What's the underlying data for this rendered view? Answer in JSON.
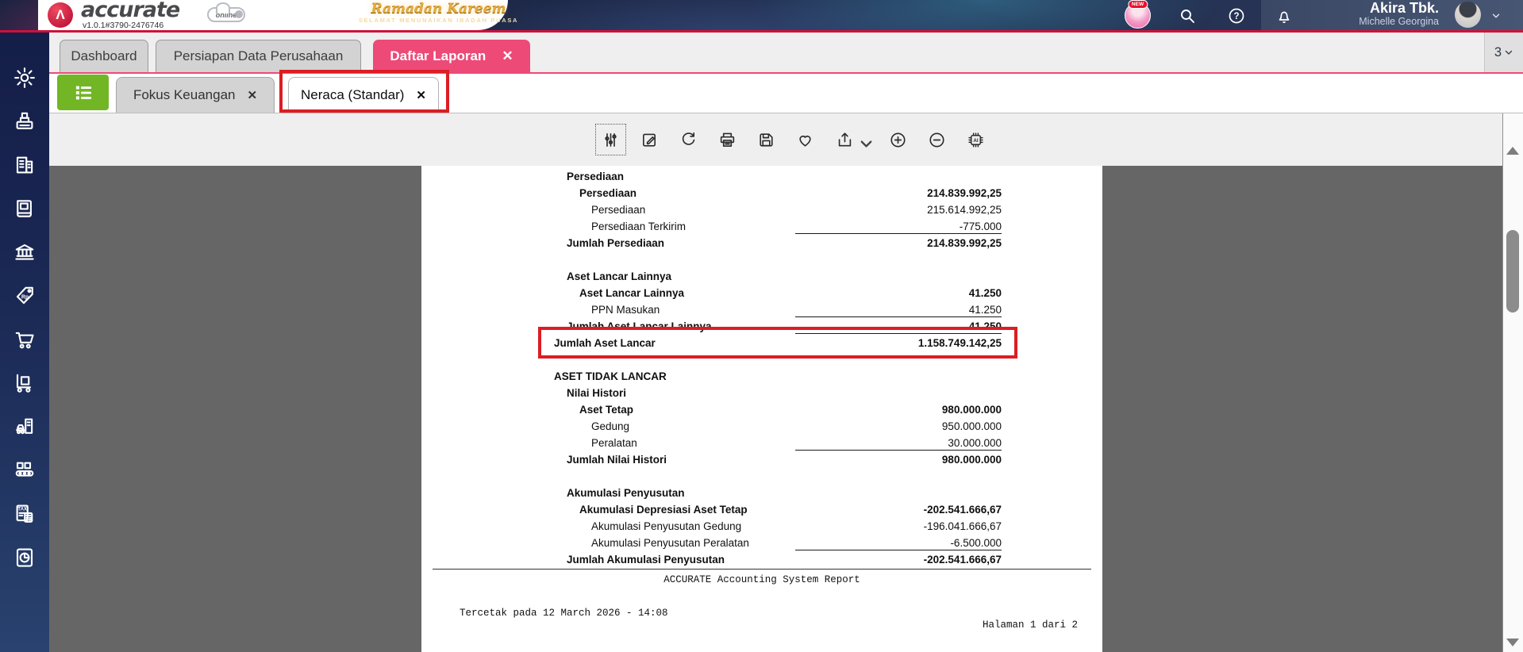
{
  "ui": {
    "close_glyph": "✕",
    "logo_glyph": "Λ"
  },
  "colors": {
    "pink": "#ed4a78",
    "green": "#72b626",
    "crimson": "#d0113b",
    "anno": "#dc1d23",
    "report_background": "#666666",
    "sidebar_navy": "#1b2955"
  },
  "header": {
    "brand": "accurate",
    "brand_sub": "online",
    "version": "v1.0.1#3790-2476746",
    "banner": {
      "title": "Ramadan Kareem",
      "subtitle": "SELAMAT MENUNAIKAN IBADAH PUASA"
    },
    "new_badge": "NEW",
    "user": {
      "company": "Akira Tbk.",
      "name": "Michelle Georgina"
    }
  },
  "main_tabs": [
    {
      "label": "Dashboard",
      "active": false,
      "closable": false
    },
    {
      "label": "Persiapan Data Perusahaan",
      "active": false,
      "closable": false
    },
    {
      "label": "Daftar Laporan",
      "active": true,
      "closable": true
    }
  ],
  "tab_overflow_count": "3",
  "report_tabs": [
    {
      "label": "Fokus Keuangan",
      "closable": true,
      "active": false
    },
    {
      "label": "Neraca (Standar)",
      "closable": true,
      "active": true,
      "annotated": true
    }
  ],
  "toolbar": {
    "icons": [
      {
        "name": "filter-settings",
        "selected": true
      },
      {
        "name": "edit"
      },
      {
        "name": "refresh"
      },
      {
        "name": "print"
      },
      {
        "name": "save"
      },
      {
        "name": "favorite"
      },
      {
        "name": "export",
        "has_dropdown": true
      },
      {
        "name": "zoom-in"
      },
      {
        "name": "zoom-out"
      },
      {
        "name": "ai-assistant"
      }
    ]
  },
  "sidebar": {
    "icons": [
      "settings",
      "cash-register",
      "company",
      "ledger-book",
      "banking",
      "price-tag-rp",
      "sales-cart",
      "purchase-delivery",
      "fixed-assets",
      "manufacturing",
      "tax",
      "reports"
    ]
  },
  "report": {
    "title_tab": "Neraca (Standar)",
    "rows": [
      {
        "label": "Persediaan",
        "value": "",
        "level": 1,
        "bold": true
      },
      {
        "label": "Persediaan",
        "value": "214.839.992,25",
        "level": 2,
        "bold": true
      },
      {
        "label": "Persediaan",
        "value": "215.614.992,25",
        "level": 3
      },
      {
        "label": "Persediaan Terkirim",
        "value": "-775.000",
        "level": 3,
        "underline": true
      },
      {
        "label": "Jumlah Persediaan",
        "value": "214.839.992,25",
        "level": 1,
        "bold": true
      },
      {
        "spacer": true
      },
      {
        "label": "Aset Lancar Lainnya",
        "value": "",
        "level": 1,
        "bold": true
      },
      {
        "label": "Aset Lancar Lainnya",
        "value": "41.250",
        "level": 2,
        "bold": true
      },
      {
        "label": "PPN Masukan",
        "value": "41.250",
        "level": 3,
        "underline": true
      },
      {
        "label": "Jumlah Aset Lancar Lainnya",
        "value": "41.250",
        "level": 1,
        "bold": true,
        "underline": true
      },
      {
        "label": "Jumlah Aset Lancar",
        "value": "1.158.749.142,25",
        "level": 0,
        "bold": true,
        "highlighted": true
      },
      {
        "spacer": true
      },
      {
        "label": "ASET TIDAK LANCAR",
        "value": "",
        "level": 0,
        "bold": true
      },
      {
        "label": "Nilai Histori",
        "value": "",
        "level": 1,
        "bold": true
      },
      {
        "label": "Aset Tetap",
        "value": "980.000.000",
        "level": 2,
        "bold": true
      },
      {
        "label": "Gedung",
        "value": "950.000.000",
        "level": 3
      },
      {
        "label": "Peralatan",
        "value": "30.000.000",
        "level": 3,
        "underline": true
      },
      {
        "label": "Jumlah Nilai Histori",
        "value": "980.000.000",
        "level": 1,
        "bold": true
      },
      {
        "spacer": true
      },
      {
        "label": "Akumulasi Penyusutan",
        "value": "",
        "level": 1,
        "bold": true
      },
      {
        "label": "Akumulasi Depresiasi Aset Tetap",
        "value": "-202.541.666,67",
        "level": 2,
        "bold": true
      },
      {
        "label": "Akumulasi Penyusutan Gedung",
        "value": "-196.041.666,67",
        "level": 3
      },
      {
        "label": "Akumulasi Penyusutan Peralatan",
        "value": "-6.500.000",
        "level": 3,
        "underline": true
      },
      {
        "label": "Jumlah Akumulasi Penyusutan",
        "value": "-202.541.666,67",
        "level": 1,
        "bold": true
      }
    ],
    "footer": {
      "system_note": "ACCURATE Accounting System Report",
      "printed": "Tercetak pada 12 March 2026 - 14:08",
      "page": "Halaman 1 dari 2"
    }
  }
}
